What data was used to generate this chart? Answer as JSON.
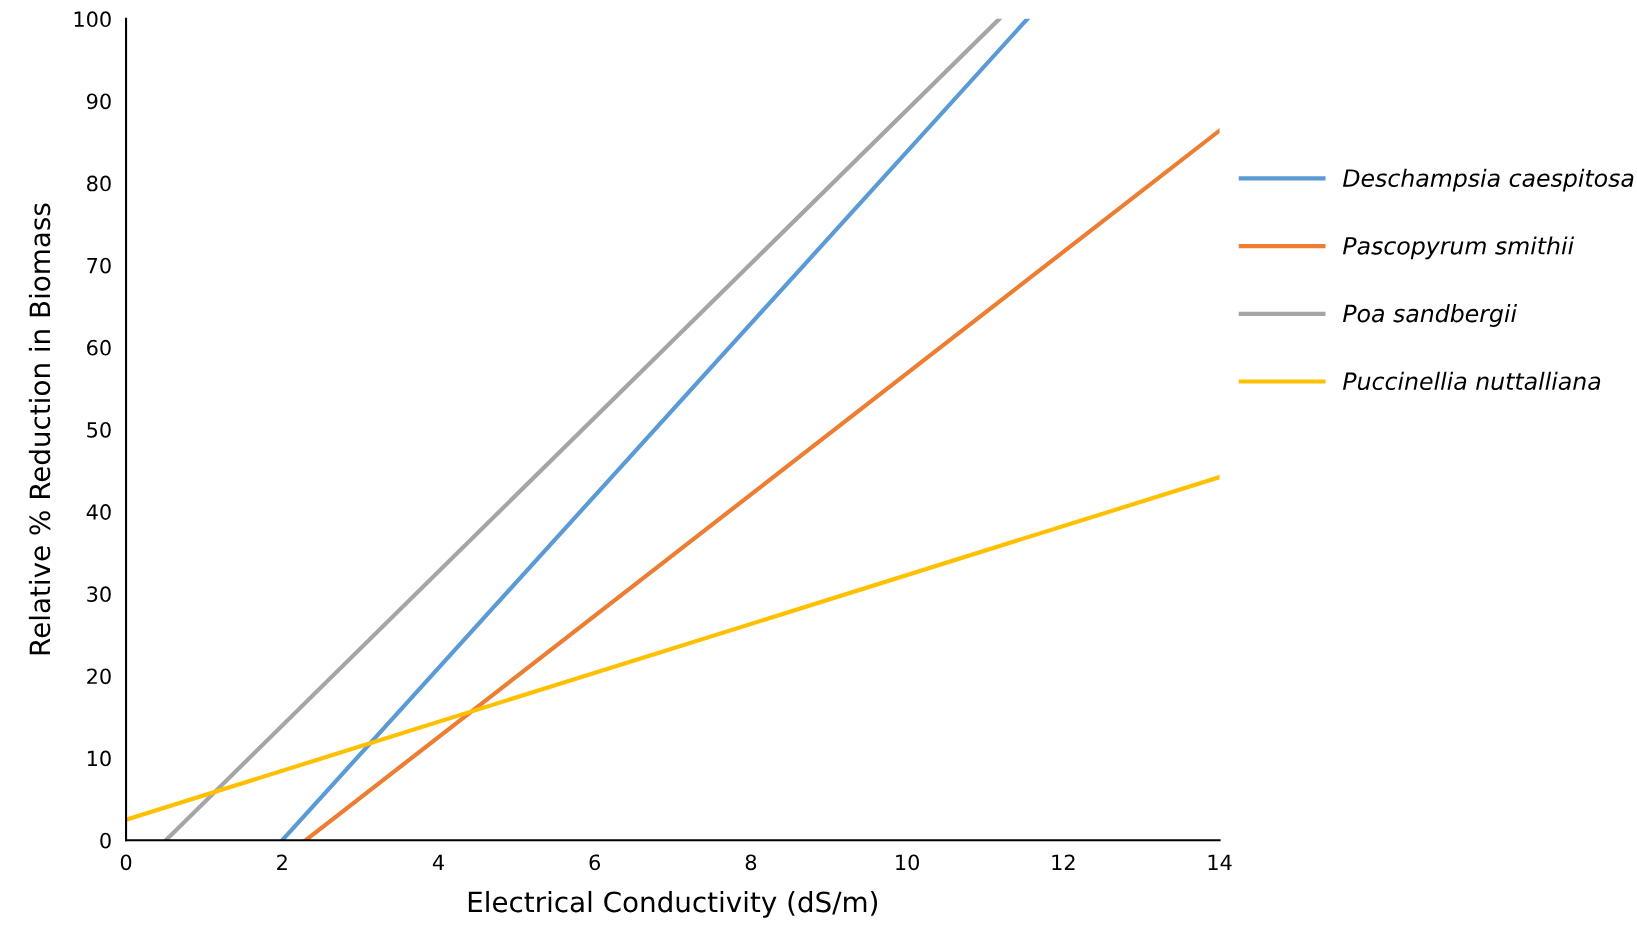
{
  "chart_data": {
    "type": "line",
    "xlabel": "Electrical Conductivity (dS/m)",
    "ylabel": "Relative % Reduction in Biomass",
    "xlim": [
      0,
      14
    ],
    "ylim": [
      0,
      100
    ],
    "xticks": [
      0,
      2,
      4,
      6,
      8,
      10,
      12,
      14
    ],
    "yticks": [
      0,
      10,
      20,
      30,
      40,
      50,
      60,
      70,
      80,
      90,
      100
    ],
    "grid": false,
    "legend": "right",
    "marker": "none",
    "line_style": "solid",
    "series": [
      {
        "name": "Deschampsia caespitosa",
        "color": "#5b9bd5",
        "x": [
          2.0,
          11.54
        ],
        "values": [
          0,
          100
        ]
      },
      {
        "name": "Pascopyrum smithii",
        "color": "#ed7d31",
        "x": [
          2.3,
          14
        ],
        "values": [
          0,
          86.4
        ]
      },
      {
        "name": "Poa sandbergii",
        "color": "#a5a5a5",
        "x": [
          0.51,
          11.18
        ],
        "values": [
          0,
          100
        ]
      },
      {
        "name": "Puccinellia nuttalliana",
        "color": "#ffc000",
        "x": [
          0,
          14
        ],
        "values": [
          2.5,
          44.2
        ]
      }
    ]
  }
}
